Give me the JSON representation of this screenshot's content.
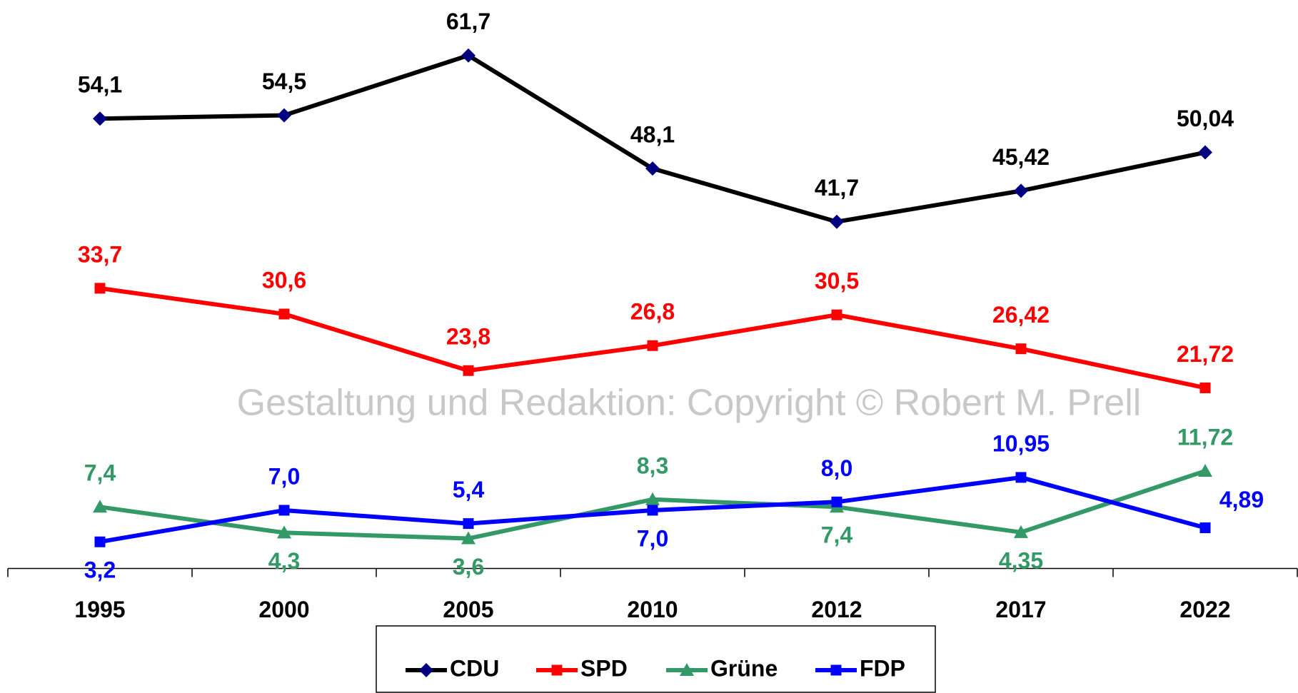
{
  "chart_data": {
    "type": "line",
    "annotation": "Gestaltung und Redaktion: Copyright © Robert M. Prell",
    "categories": [
      "1995",
      "2000",
      "2005",
      "2010",
      "2012",
      "2017",
      "2022"
    ],
    "ylim": [
      0,
      68
    ],
    "series": [
      {
        "name": "CDU",
        "color": "#000000",
        "marker_color": "#000080",
        "marker": "diamond",
        "values": [
          54.1,
          54.5,
          61.7,
          48.1,
          41.7,
          45.42,
          50.04
        ],
        "value_labels": [
          "54,1",
          "54,5",
          "61,7",
          "48,1",
          "41,7",
          "45,42",
          "50,04"
        ],
        "label_color": "#000000"
      },
      {
        "name": "SPD",
        "color": "#ff0000",
        "marker_color": "#ff0000",
        "marker": "square",
        "values": [
          33.7,
          30.6,
          23.8,
          26.8,
          30.5,
          26.42,
          21.72
        ],
        "value_labels": [
          "33,7",
          "30,6",
          "23,8",
          "26,8",
          "30,5",
          "26,42",
          "21,72"
        ],
        "label_color": "#ff0000"
      },
      {
        "name": "Grüne",
        "color": "#339966",
        "marker_color": "#339966",
        "marker": "triangle",
        "values": [
          7.4,
          4.3,
          3.6,
          8.3,
          7.4,
          4.35,
          11.72
        ],
        "value_labels": [
          "7,4",
          "4,3",
          "3,6",
          "8,3",
          "7,4",
          "4,35",
          "11,72"
        ],
        "label_color": "#339966"
      },
      {
        "name": "FDP",
        "color": "#0000ff",
        "marker_color": "#0000ff",
        "marker": "square",
        "values": [
          3.2,
          7.0,
          5.4,
          7.0,
          8.0,
          10.95,
          4.89
        ],
        "value_labels": [
          "3,2",
          "7,0",
          "5,4",
          "7,0",
          "8,0",
          "10,95",
          "4,89"
        ],
        "label_color": "#0000ff"
      }
    ]
  }
}
